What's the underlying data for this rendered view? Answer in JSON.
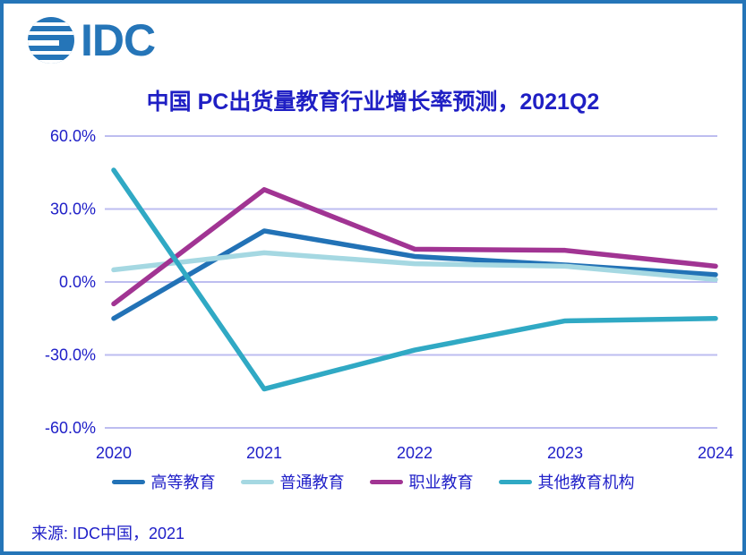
{
  "logo": {
    "text": "IDC"
  },
  "colors": {
    "frame_border": "#2575b8",
    "logo_blue": "#2575b8",
    "text_blue": "#2020c8",
    "title_blue": "#1f1fc4",
    "gridline": "#bdbdf0",
    "background": "#ffffff"
  },
  "chart_data": {
    "type": "line",
    "title": "中国 PC出货量教育行业增长率预测，2021Q2",
    "categories": [
      "2020",
      "2021",
      "2022",
      "2023",
      "2024"
    ],
    "series": [
      {
        "name": "高等教育",
        "color": "#2272b6",
        "values": [
          -15,
          21,
          10.5,
          7,
          3
        ]
      },
      {
        "name": "普通教育",
        "color": "#a5d8e2",
        "values": [
          5,
          12,
          7.5,
          6.5,
          1
        ]
      },
      {
        "name": "职业教育",
        "color": "#a13493",
        "values": [
          -9,
          38,
          13.5,
          13,
          6.5
        ]
      },
      {
        "name": "其他教育机构",
        "color": "#30a9c4",
        "values": [
          46,
          -44,
          -28,
          -16,
          -15
        ]
      }
    ],
    "ylim": [
      -60,
      60
    ],
    "yticks": [
      {
        "value": 60,
        "label": "60.0%"
      },
      {
        "value": 30,
        "label": "30.0%"
      },
      {
        "value": 0,
        "label": "0.0%"
      },
      {
        "value": -30,
        "label": "-30.0%"
      },
      {
        "value": -60,
        "label": "-60.0%"
      }
    ],
    "grid": true,
    "legend_position": "bottom",
    "xlabel": "",
    "ylabel": ""
  },
  "source": "来源:  IDC中国，2021"
}
